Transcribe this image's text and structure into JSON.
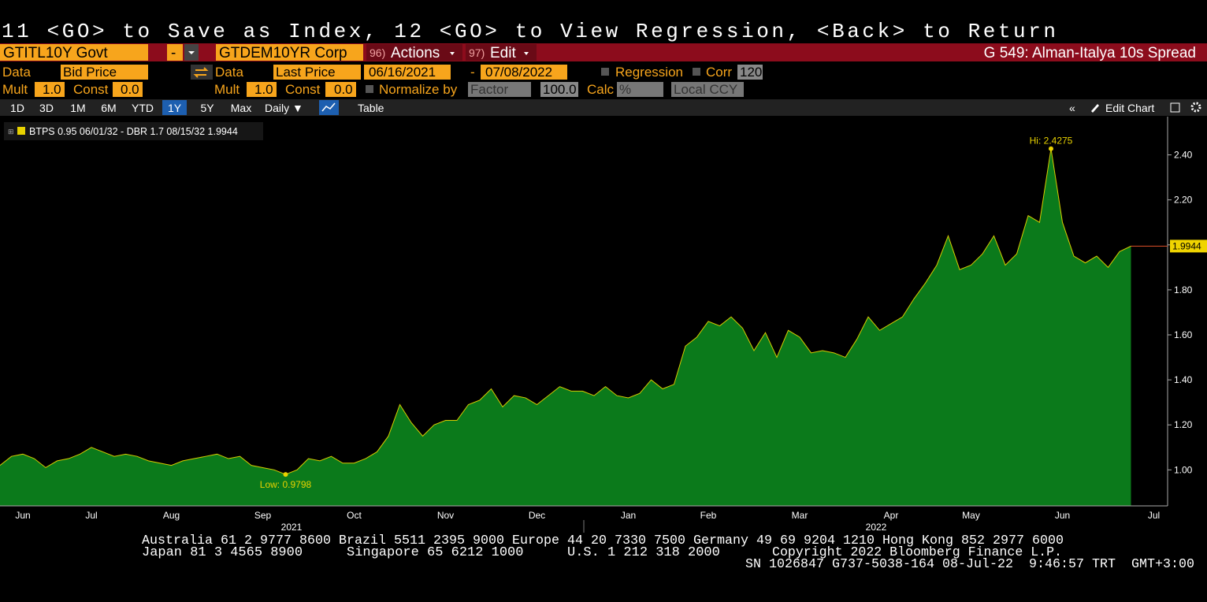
{
  "header": {
    "command": "11 <GO> to Save as Index, 12 <GO> to View Regression, <Back> to Return"
  },
  "toolbar": {
    "security1": "GTITL10Y Govt",
    "operator": "-",
    "security2": "GTDEM10YR Corp",
    "actions_num": "96)",
    "actions": "Actions",
    "edit_num": "97)",
    "edit": "Edit",
    "title": "G 549: Alman-Italya 10s Spread"
  },
  "row2": {
    "data1_label": "Data",
    "data1": "Bid Price",
    "data2_label": "Data",
    "data2": "Last Price",
    "start": "06/16/2021",
    "dash": "-",
    "end": "07/08/2022",
    "regression": "Regression",
    "corr": "Corr",
    "corr_value": "120"
  },
  "row3": {
    "mult1_label": "Mult",
    "mult1": "1.0",
    "const1_label": "Const",
    "const1": "0.0",
    "mult2_label": "Mult",
    "mult2": "1.0",
    "const2_label": "Const",
    "const2": "0.0",
    "normalize": "Normalize by",
    "factor": "Factor",
    "factor_value": "100.0",
    "calc": "Calc",
    "calc_value": "%",
    "ccy": "Local CCY"
  },
  "tabs": {
    "items": [
      "1D",
      "3D",
      "1M",
      "6M",
      "YTD",
      "1Y",
      "5Y",
      "Max"
    ],
    "frequency": "Daily ▼",
    "table": "Table",
    "collapse": "«",
    "edit_chart": "Edit Chart"
  },
  "chart_data": {
    "type": "area",
    "categories": [
      null,
      null,
      "Jun",
      null,
      null,
      null,
      null,
      null,
      "Jul",
      null,
      null,
      null,
      null,
      null,
      null,
      "Aug",
      null,
      null,
      null,
      null,
      null,
      null,
      null,
      "Sep",
      null,
      null,
      null,
      null,
      null,
      null,
      null,
      "Oct",
      null,
      null,
      null,
      null,
      null,
      null,
      null,
      "Nov",
      null,
      null,
      null,
      null,
      null,
      null,
      null,
      "Dec",
      null,
      null,
      null,
      null,
      null,
      null,
      null,
      "Jan",
      null,
      null,
      null,
      null,
      null,
      null,
      "Feb",
      null,
      null,
      null,
      null,
      null,
      null,
      null,
      "Mar",
      null,
      null,
      null,
      null,
      null,
      null,
      null,
      "Apr",
      null,
      null,
      null,
      null,
      null,
      null,
      "May",
      null,
      null,
      null,
      null,
      null,
      null,
      null,
      "Jun",
      null,
      null,
      null,
      null,
      null,
      null,
      null,
      "Jul"
    ],
    "years": [
      "2021",
      "2022"
    ],
    "series": [
      {
        "name": "BTPS 0.95 06/01/32 - DBR 1.7 08/15/32 1.9944",
        "color": "#0b7a1b",
        "line_color": "#d8cc00",
        "values": [
          1.02,
          1.06,
          1.07,
          1.05,
          1.01,
          1.04,
          1.05,
          1.07,
          1.1,
          1.08,
          1.06,
          1.07,
          1.06,
          1.04,
          1.03,
          1.02,
          1.04,
          1.05,
          1.06,
          1.07,
          1.05,
          1.06,
          1.02,
          1.01,
          1.0,
          0.9798,
          1.0,
          1.05,
          1.04,
          1.06,
          1.03,
          1.03,
          1.05,
          1.08,
          1.15,
          1.29,
          1.21,
          1.15,
          1.2,
          1.22,
          1.22,
          1.29,
          1.31,
          1.36,
          1.28,
          1.33,
          1.32,
          1.29,
          1.33,
          1.37,
          1.35,
          1.35,
          1.33,
          1.37,
          1.33,
          1.32,
          1.34,
          1.4,
          1.36,
          1.38,
          1.55,
          1.59,
          1.66,
          1.64,
          1.68,
          1.63,
          1.53,
          1.61,
          1.5,
          1.62,
          1.59,
          1.52,
          1.53,
          1.52,
          1.5,
          1.58,
          1.68,
          1.62,
          1.65,
          1.68,
          1.76,
          1.83,
          1.91,
          2.04,
          1.89,
          1.91,
          1.96,
          2.04,
          1.91,
          1.96,
          2.13,
          2.1,
          2.4275,
          2.1,
          1.95,
          1.92,
          1.95,
          1.9,
          1.97,
          1.9944,
          null,
          null
        ]
      }
    ],
    "ylim": [
      0.84,
      2.57
    ],
    "yticks": [
      {
        "value": 1.0,
        "label": "1.00"
      },
      {
        "value": 1.2,
        "label": "1.20"
      },
      {
        "value": 1.4,
        "label": "1.40"
      },
      {
        "value": 1.6,
        "label": "1.60"
      },
      {
        "value": 1.8,
        "label": "1.80"
      },
      {
        "value": 2.0,
        "label": "2.00"
      },
      {
        "value": 2.2,
        "label": "2.20"
      },
      {
        "value": 2.4,
        "label": "2.40"
      }
    ],
    "annotations": [
      {
        "text": "Hi: 2.4275"
      },
      {
        "text": "Low: 0.9798"
      },
      {
        "text": "1.9944"
      }
    ],
    "grid": false
  },
  "footer": {
    "line1": "Australia 61 2 9777 8600 Brazil 5511 2395 9000 Europe 44 20 7330 7500 Germany 49 69 9204 1210 Hong Kong 852 2977 6000",
    "japan": "Japan 81 3 4565 8900",
    "singapore": "Singapore 65 6212 1000",
    "us": "U.S. 1 212 318 2000",
    "copyright": "Copyright 2022 Bloomberg Finance L.P.",
    "line3": "SN 1026847 G737-5038-164 08-Jul-22  9:46:57 TRT  GMT+3:00"
  }
}
